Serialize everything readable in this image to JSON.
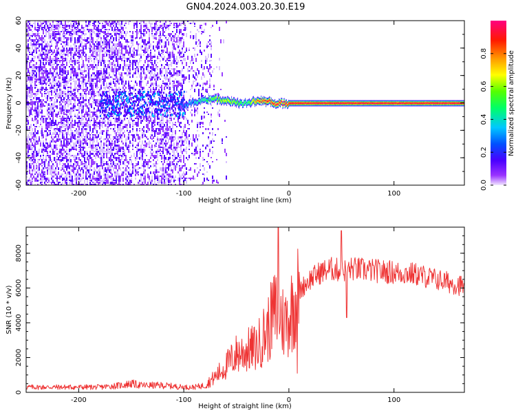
{
  "figure_title": "GN04.2024.003.20.30.E19",
  "chart_data": [
    {
      "type": "heatmap",
      "title": "",
      "xlabel": "Height of straight line (km)",
      "ylabel": "Frequency (Hz)",
      "xlim": [
        -250,
        167
      ],
      "ylim": [
        -60,
        60
      ],
      "x_ticks": [
        -200,
        -100,
        0,
        100
      ],
      "y_ticks": [
        -60,
        -40,
        -20,
        0,
        20,
        40,
        60
      ],
      "colorbar": {
        "label": "Normalized spectral amplitude",
        "range": [
          0,
          1
        ],
        "ticks": [
          "0.0",
          "0.2",
          "0.4",
          "0.6",
          "0.8"
        ],
        "colormap": "rainbow (violet-blue-cyan-green-yellow-orange-red-magenta)"
      },
      "ridge_line": {
        "description": "strong narrow-band signal centered near 0 Hz",
        "x": [
          -100,
          -90,
          -80,
          -70,
          -60,
          -50,
          -40,
          -30,
          -20,
          -10,
          0,
          50,
          100,
          167
        ],
        "frequency": [
          -2,
          1,
          2,
          3,
          2,
          0,
          0,
          2,
          1,
          0,
          0,
          0,
          0,
          0
        ],
        "amplitude": [
          0.3,
          0.4,
          0.5,
          0.6,
          0.7,
          0.6,
          0.5,
          0.9,
          0.95,
          1.0,
          1.0,
          1.0,
          1.0,
          1.0
        ]
      },
      "noise_region": {
        "description": "scattered low-amplitude noise (violet) across the full frequency band",
        "x_range": [
          -250,
          -70
        ],
        "amplitude": 0.1
      }
    },
    {
      "type": "line",
      "title": "",
      "xlabel": "Height of straight line (km)",
      "ylabel": "SNR (10 * v/v)",
      "xlim": [
        -250,
        167
      ],
      "ylim": [
        0,
        9500
      ],
      "x_ticks": [
        -200,
        -100,
        0,
        100
      ],
      "y_ticks": [
        0,
        2000,
        4000,
        6000,
        8000
      ],
      "line_color": "#ee3333",
      "x": [
        -250,
        -220,
        -200,
        -180,
        -160,
        -150,
        -140,
        -120,
        -100,
        -90,
        -80,
        -70,
        -60,
        -50,
        -40,
        -30,
        -25,
        -20,
        -15,
        -10,
        -5,
        0,
        5,
        10,
        15,
        20,
        30,
        40,
        50,
        60,
        80,
        100,
        120,
        140,
        167
      ],
      "values": [
        300,
        300,
        300,
        300,
        400,
        500,
        400,
        400,
        300,
        300,
        400,
        900,
        1500,
        2200,
        2400,
        2600,
        3200,
        3600,
        4500,
        4800,
        4000,
        4300,
        5200,
        5800,
        6200,
        6500,
        6900,
        7100,
        7000,
        7100,
        7000,
        6900,
        6800,
        6500,
        6100
      ],
      "spikes": [
        {
          "x": -10,
          "value": 9500
        },
        {
          "x": 8,
          "value": 8600
        },
        {
          "x": 50,
          "value": 9300
        },
        {
          "x": 55,
          "value": 4300
        },
        {
          "x": 8,
          "value": 1100
        }
      ]
    }
  ]
}
